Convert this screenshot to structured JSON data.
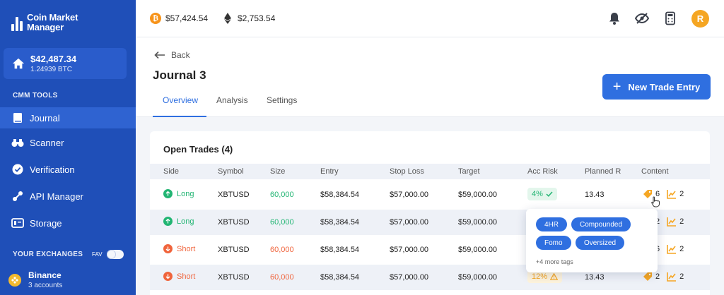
{
  "brand": {
    "line1": "Coin Market",
    "line2": "Manager"
  },
  "balance": {
    "amount": "$42,487.34",
    "btc": "1.24939 BTC"
  },
  "sidebar": {
    "tools_label": "CMM TOOLS",
    "items": [
      {
        "label": "Journal",
        "icon": "journal-icon"
      },
      {
        "label": "Scanner",
        "icon": "binoculars-icon"
      },
      {
        "label": "Verification",
        "icon": "check-badge-icon"
      },
      {
        "label": "API Manager",
        "icon": "api-icon"
      },
      {
        "label": "Storage",
        "icon": "storage-icon"
      }
    ],
    "exchanges_label": "YOUR EXCHANGES",
    "fav_label": "FAV",
    "exchange": {
      "name": "Binance",
      "accounts": "3 accounts"
    }
  },
  "topbar": {
    "btc_price": "$57,424.54",
    "eth_price": "$2,753.54",
    "avatar_initial": "R"
  },
  "page": {
    "back_label": "Back",
    "title": "Journal 3",
    "tabs": [
      "Overview",
      "Analysis",
      "Settings"
    ],
    "new_trade_label": "New Trade Entry"
  },
  "open_trades": {
    "title": "Open Trades (4)",
    "columns": [
      "Side",
      "Symbol",
      "Size",
      "Entry",
      "Stop Loss",
      "Target",
      "Acc Risk",
      "Planned R",
      "Content"
    ],
    "rows": [
      {
        "side": "Long",
        "symbol": "XBTUSD",
        "size": "60,000",
        "entry": "$58,384.54",
        "stop": "$57,000.00",
        "target": "$59,000.00",
        "risk": "4%",
        "planned": "13.43",
        "tags": "6",
        "charts": "2"
      },
      {
        "side": "Long",
        "symbol": "XBTUSD",
        "size": "60,000",
        "entry": "$58,384.54",
        "stop": "$57,000.00",
        "target": "$59,000.00",
        "risk": "",
        "planned": "",
        "tags": "2",
        "charts": "2"
      },
      {
        "side": "Short",
        "symbol": "XBTUSD",
        "size": "60,000",
        "entry": "$58,384.54",
        "stop": "$57,000.00",
        "target": "$59,000.00",
        "risk": "",
        "planned": "",
        "tags": "6",
        "charts": "2"
      },
      {
        "side": "Short",
        "symbol": "XBTUSD",
        "size": "60,000",
        "entry": "$58,384.54",
        "stop": "$57,000.00",
        "target": "$59,000.00",
        "risk": "12%",
        "planned": "13.43",
        "tags": "2",
        "charts": "2"
      }
    ]
  },
  "tags_popup": {
    "tags": [
      "4HR",
      "Compounded",
      "Fomo",
      "Oversized"
    ],
    "more": "+4 more tags"
  },
  "colors": {
    "primary": "#2f6fe0",
    "sidebar": "#1f4fb8",
    "long": "#22b573",
    "short": "#f0643c",
    "warning": "#f5a623"
  }
}
